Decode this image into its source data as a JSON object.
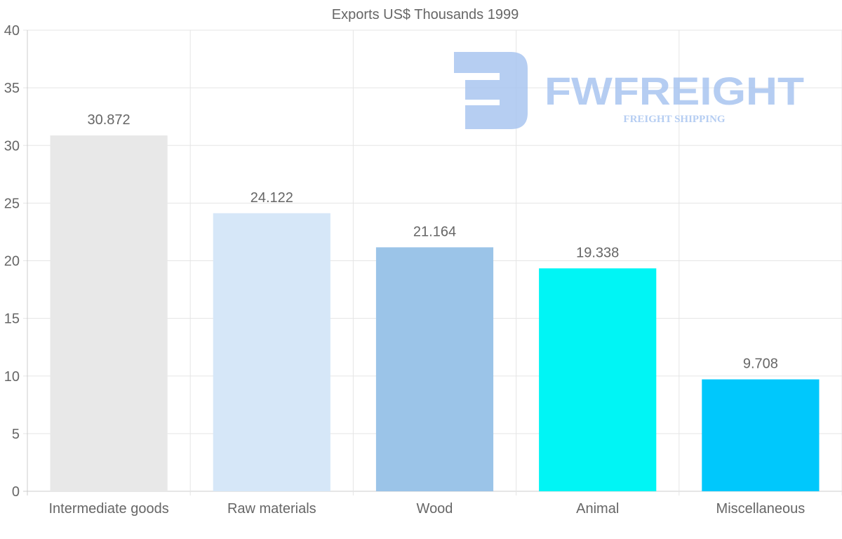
{
  "chart_data": {
    "type": "bar",
    "title": "Exports US$ Thousands 1999",
    "categories": [
      "Intermediate goods",
      "Raw materials",
      "Wood",
      "Animal",
      "Miscellaneous"
    ],
    "values": [
      30.872,
      24.122,
      21.164,
      19.338,
      9.708
    ],
    "value_labels": [
      "30.872",
      "24.122",
      "21.164",
      "19.338",
      "9.708"
    ],
    "colors": [
      "#e8e8e8",
      "#d6e7f8",
      "#9bc4e8",
      "#00f5f5",
      "#00c8fc"
    ],
    "xlabel": "",
    "ylabel": "",
    "ylim": [
      0,
      40
    ],
    "yticks": [
      0,
      5,
      10,
      15,
      20,
      25,
      30,
      35,
      40
    ],
    "grid": true,
    "legend": "none"
  },
  "watermark": {
    "brand": "FWFREIGHT",
    "tagline": "FREIGHT SHIPPING",
    "color": "#a9c5f0"
  }
}
